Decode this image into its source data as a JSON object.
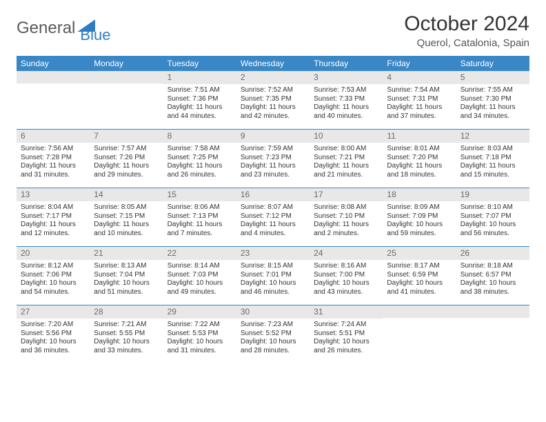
{
  "logo": {
    "text1": "General",
    "text2": "Blue"
  },
  "title": "October 2024",
  "location": "Querol, Catalonia, Spain",
  "colors": {
    "header_bg": "#3a87c7",
    "header_text": "#ffffff",
    "daynum_bg": "#e8e8e8",
    "daynum_text": "#6a6a6a",
    "text": "#333333",
    "divider": "#3a87c7"
  },
  "day_names": [
    "Sunday",
    "Monday",
    "Tuesday",
    "Wednesday",
    "Thursday",
    "Friday",
    "Saturday"
  ],
  "weeks": [
    [
      {
        "empty": true
      },
      {
        "empty": true
      },
      {
        "n": "1",
        "sunrise": "7:51 AM",
        "sunset": "7:36 PM",
        "daylight": "11 hours and 44 minutes."
      },
      {
        "n": "2",
        "sunrise": "7:52 AM",
        "sunset": "7:35 PM",
        "daylight": "11 hours and 42 minutes."
      },
      {
        "n": "3",
        "sunrise": "7:53 AM",
        "sunset": "7:33 PM",
        "daylight": "11 hours and 40 minutes."
      },
      {
        "n": "4",
        "sunrise": "7:54 AM",
        "sunset": "7:31 PM",
        "daylight": "11 hours and 37 minutes."
      },
      {
        "n": "5",
        "sunrise": "7:55 AM",
        "sunset": "7:30 PM",
        "daylight": "11 hours and 34 minutes."
      }
    ],
    [
      {
        "n": "6",
        "sunrise": "7:56 AM",
        "sunset": "7:28 PM",
        "daylight": "11 hours and 31 minutes."
      },
      {
        "n": "7",
        "sunrise": "7:57 AM",
        "sunset": "7:26 PM",
        "daylight": "11 hours and 29 minutes."
      },
      {
        "n": "8",
        "sunrise": "7:58 AM",
        "sunset": "7:25 PM",
        "daylight": "11 hours and 26 minutes."
      },
      {
        "n": "9",
        "sunrise": "7:59 AM",
        "sunset": "7:23 PM",
        "daylight": "11 hours and 23 minutes."
      },
      {
        "n": "10",
        "sunrise": "8:00 AM",
        "sunset": "7:21 PM",
        "daylight": "11 hours and 21 minutes."
      },
      {
        "n": "11",
        "sunrise": "8:01 AM",
        "sunset": "7:20 PM",
        "daylight": "11 hours and 18 minutes."
      },
      {
        "n": "12",
        "sunrise": "8:03 AM",
        "sunset": "7:18 PM",
        "daylight": "11 hours and 15 minutes."
      }
    ],
    [
      {
        "n": "13",
        "sunrise": "8:04 AM",
        "sunset": "7:17 PM",
        "daylight": "11 hours and 12 minutes."
      },
      {
        "n": "14",
        "sunrise": "8:05 AM",
        "sunset": "7:15 PM",
        "daylight": "11 hours and 10 minutes."
      },
      {
        "n": "15",
        "sunrise": "8:06 AM",
        "sunset": "7:13 PM",
        "daylight": "11 hours and 7 minutes."
      },
      {
        "n": "16",
        "sunrise": "8:07 AM",
        "sunset": "7:12 PM",
        "daylight": "11 hours and 4 minutes."
      },
      {
        "n": "17",
        "sunrise": "8:08 AM",
        "sunset": "7:10 PM",
        "daylight": "11 hours and 2 minutes."
      },
      {
        "n": "18",
        "sunrise": "8:09 AM",
        "sunset": "7:09 PM",
        "daylight": "10 hours and 59 minutes."
      },
      {
        "n": "19",
        "sunrise": "8:10 AM",
        "sunset": "7:07 PM",
        "daylight": "10 hours and 56 minutes."
      }
    ],
    [
      {
        "n": "20",
        "sunrise": "8:12 AM",
        "sunset": "7:06 PM",
        "daylight": "10 hours and 54 minutes."
      },
      {
        "n": "21",
        "sunrise": "8:13 AM",
        "sunset": "7:04 PM",
        "daylight": "10 hours and 51 minutes."
      },
      {
        "n": "22",
        "sunrise": "8:14 AM",
        "sunset": "7:03 PM",
        "daylight": "10 hours and 49 minutes."
      },
      {
        "n": "23",
        "sunrise": "8:15 AM",
        "sunset": "7:01 PM",
        "daylight": "10 hours and 46 minutes."
      },
      {
        "n": "24",
        "sunrise": "8:16 AM",
        "sunset": "7:00 PM",
        "daylight": "10 hours and 43 minutes."
      },
      {
        "n": "25",
        "sunrise": "8:17 AM",
        "sunset": "6:59 PM",
        "daylight": "10 hours and 41 minutes."
      },
      {
        "n": "26",
        "sunrise": "8:18 AM",
        "sunset": "6:57 PM",
        "daylight": "10 hours and 38 minutes."
      }
    ],
    [
      {
        "n": "27",
        "sunrise": "7:20 AM",
        "sunset": "5:56 PM",
        "daylight": "10 hours and 36 minutes."
      },
      {
        "n": "28",
        "sunrise": "7:21 AM",
        "sunset": "5:55 PM",
        "daylight": "10 hours and 33 minutes."
      },
      {
        "n": "29",
        "sunrise": "7:22 AM",
        "sunset": "5:53 PM",
        "daylight": "10 hours and 31 minutes."
      },
      {
        "n": "30",
        "sunrise": "7:23 AM",
        "sunset": "5:52 PM",
        "daylight": "10 hours and 28 minutes."
      },
      {
        "n": "31",
        "sunrise": "7:24 AM",
        "sunset": "5:51 PM",
        "daylight": "10 hours and 26 minutes."
      },
      {
        "empty": true
      },
      {
        "empty": true
      }
    ]
  ],
  "labels": {
    "sunrise": "Sunrise: ",
    "sunset": "Sunset: ",
    "daylight": "Daylight: "
  }
}
